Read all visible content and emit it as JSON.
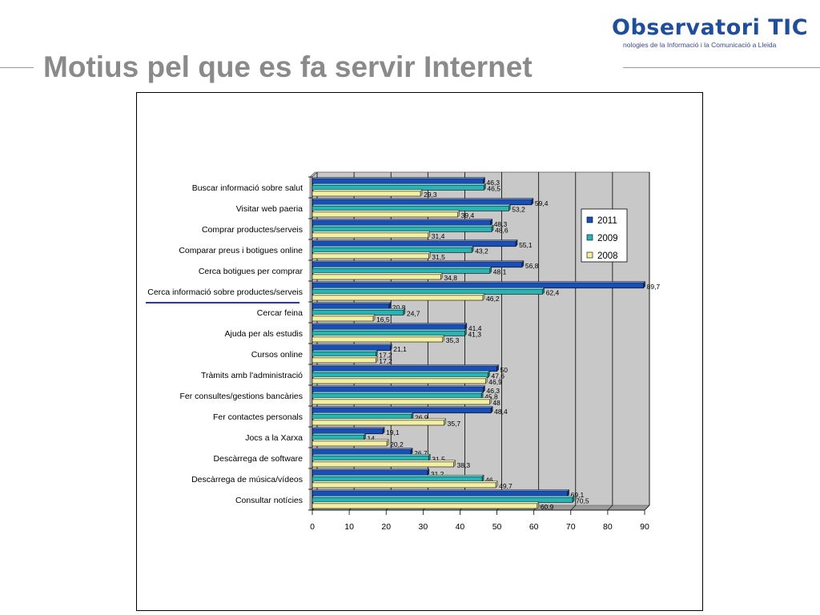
{
  "header": {
    "logo_name": "Observatori TIC",
    "logo_tagline": "nologies de la Informació i la Comunicació a Lleida",
    "title": "Motius pel que es fa servir Internet"
  },
  "colors": {
    "2011": "#1a4fb8",
    "2009": "#29b3b3",
    "2008": "#f3f0a0",
    "plot_bg": "#c8c8c8",
    "title_gray": "#8a8a8a",
    "highlight": "#2b3aa0"
  },
  "chart_data": {
    "type": "bar",
    "orientation": "horizontal",
    "title": "",
    "xlabel": "",
    "ylabel": "",
    "xlim": [
      0,
      90
    ],
    "x_ticks": [
      "0",
      "10",
      "20",
      "30",
      "40",
      "50",
      "60",
      "70",
      "80",
      "90"
    ],
    "grid": true,
    "legend_position": "right",
    "categories": [
      "Buscar informació sobre salut",
      "Visitar web paeria",
      "Comprar productes/serveis",
      "Comparar preus i botigues online",
      "Cerca botigues per comprar",
      "Cerca informació sobre productes/serveis",
      "Cercar feina",
      "Ajuda per als estudis",
      "Cursos online",
      "Tràmits amb l'administració",
      "Fer consultes/gestions bancàries",
      "Fer contactes personals",
      "Jocs a la Xarxa",
      "Descàrrega de software",
      "Descàrrega de música/vídeos",
      "Consultar notícies"
    ],
    "highlighted_category": "Cerca informació sobre productes/serveis",
    "series": [
      {
        "name": "2011",
        "values": [
          46.3,
          59.4,
          48.3,
          55.1,
          56.8,
          89.7,
          20.8,
          41.4,
          21.1,
          50,
          46.3,
          48.4,
          19.1,
          26.7,
          31.2,
          69.1
        ],
        "labels": [
          "46,3",
          "59,4",
          "48,3",
          "55,1",
          "56,8",
          "89,7",
          "20,8",
          "41,4",
          "21,1",
          "50",
          "46,3",
          "48,4",
          "19,1",
          "26,7",
          "31,2",
          "69,1"
        ]
      },
      {
        "name": "2009",
        "values": [
          46.5,
          53.2,
          48.6,
          43.2,
          48.1,
          62.4,
          24.7,
          41.3,
          17.2,
          47.6,
          45.8,
          26.9,
          14,
          31.5,
          46,
          70.5
        ],
        "labels": [
          "46,5",
          "53,2",
          "48,6",
          "43,2",
          "48,1",
          "62,4",
          "24,7",
          "41,3",
          "17,2",
          "47,6",
          "45,8",
          "26,9",
          "14",
          "31,5",
          "46",
          "70,5"
        ]
      },
      {
        "name": "2008",
        "values": [
          29.3,
          39.4,
          31.4,
          31.5,
          34.8,
          46.2,
          16.5,
          35.3,
          17.2,
          46.9,
          48,
          35.7,
          20.2,
          38.3,
          49.7,
          60.9
        ],
        "labels": [
          "29,3",
          "39,4",
          "31,4",
          "31,5",
          "34,8",
          "46,2",
          "16,5",
          "35,3",
          "17,2",
          "46,9",
          "48",
          "35,7",
          "20,2",
          "38,3",
          "49,7",
          "60,9"
        ]
      }
    ]
  }
}
